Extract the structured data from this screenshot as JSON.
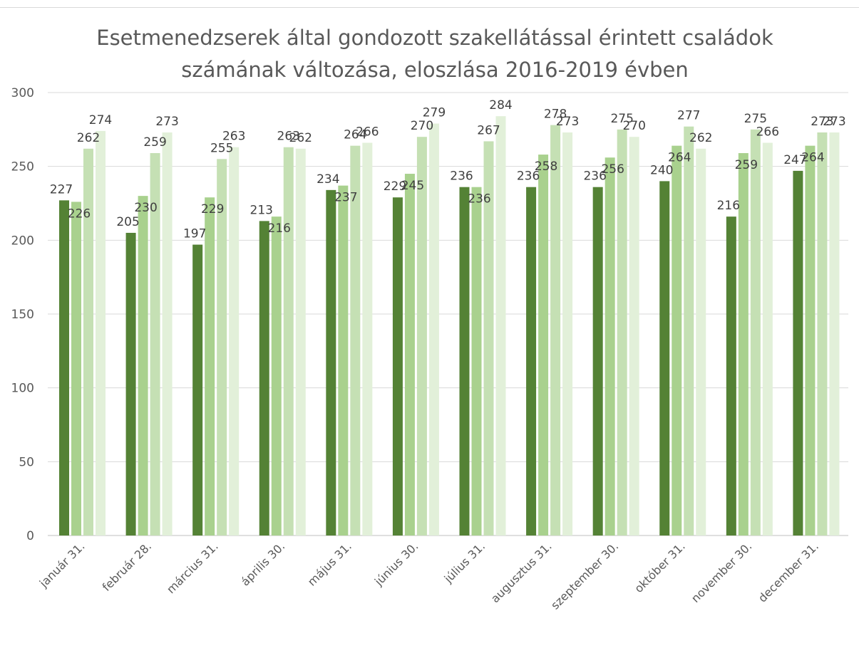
{
  "chart_data": {
    "type": "bar",
    "title_line1": "Esetmenedzserek által gondozott szakellátással érintett családok",
    "title_line2": "számának változása, eloszlása 2016-2019 évben",
    "categories": [
      "január 31.",
      "február 28.",
      "március 31.",
      "április 30.",
      "május 31.",
      "június 30.",
      "július 31.",
      "augusztus 31.",
      "szeptember 30.",
      "október 31.",
      "november 30.",
      "december 31."
    ],
    "yticks": [
      "0",
      "50",
      "100",
      "150",
      "200",
      "250",
      "300"
    ],
    "ylim": [
      0,
      300
    ],
    "grid": true,
    "legend": "none",
    "series": [
      {
        "values": [
          227,
          205,
          197,
          213,
          234,
          229,
          236,
          236,
          236,
          240,
          216,
          247
        ],
        "color": "#548235"
      },
      {
        "values": [
          226,
          230,
          229,
          216,
          237,
          245,
          236,
          258,
          256,
          264,
          259,
          264
        ],
        "color": "#a9d18e"
      },
      {
        "values": [
          262,
          259,
          255,
          263,
          264,
          270,
          267,
          278,
          275,
          277,
          275,
          273
        ],
        "color": "#c5e0b4"
      },
      {
        "values": [
          274,
          273,
          263,
          262,
          266,
          279,
          284,
          273,
          270,
          262,
          266,
          273
        ],
        "color": "#e2f0d9"
      }
    ]
  }
}
